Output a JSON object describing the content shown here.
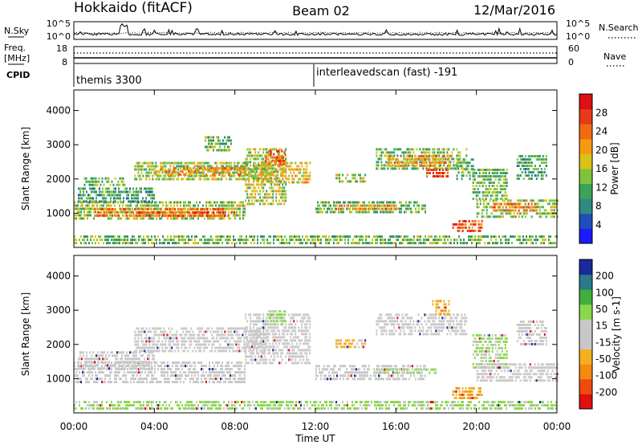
{
  "header": {
    "station": "Hokkaido (fitACF)",
    "beam": "Beam 02",
    "date": "12/Mar/2016"
  },
  "left_labels": {
    "nsky": "N.Sky",
    "freq": "Freq.",
    "mhz": "[MHz]",
    "cpid": "CPID"
  },
  "right_labels": {
    "nsearch": "N.Search",
    "nave": "Nave"
  },
  "noise_axis": {
    "top": "10^5",
    "bottom": "10^0",
    "right_top": "10^5",
    "right_bottom": "10^0"
  },
  "freq_axis": {
    "left_top": "18",
    "left_bottom": "8",
    "right_top": "60",
    "right_bottom": "0"
  },
  "cpid_segments": [
    {
      "label": "themis 3300",
      "start_hour": 0.0
    },
    {
      "label": "interleavedscan (fast) -191",
      "start_hour": 12.0
    }
  ],
  "x_axis": {
    "label": "Time UT",
    "ticks": [
      "00:00",
      "04:00",
      "08:00",
      "12:00",
      "16:00",
      "20:00",
      "00:00"
    ],
    "tick_hours": [
      0,
      4,
      8,
      12,
      16,
      20,
      24
    ]
  },
  "colors": {
    "power": [
      "#1a1aff",
      "#1f4fb8",
      "#2e8b7e",
      "#3aa35a",
      "#7fc23c",
      "#d8c21a",
      "#f59a10",
      "#f26a12",
      "#e83a1a",
      "#dd1111"
    ],
    "velocity": [
      "#e01010",
      "#f04a10",
      "#f58a10",
      "#f5b020",
      "#c8c8c8",
      "#c8c8c8",
      "#8ad84a",
      "#3fb03a",
      "#2a7a8a",
      "#1a2a9a"
    ]
  },
  "chart_data": [
    {
      "type": "heatmap",
      "name": "power",
      "ylabel": "Slant Range [km]",
      "ylim": [
        0,
        4600
      ],
      "yticks": [
        1000,
        2000,
        3000,
        4000
      ],
      "colorbar": {
        "label": "Power [dB]",
        "ticks": [
          "4",
          "8",
          "12",
          "16",
          "20",
          "24",
          "28"
        ],
        "range": [
          0,
          30
        ]
      },
      "bands": [
        {
          "t0": 0.0,
          "t1": 8.5,
          "r0": 850,
          "r1": 1350,
          "v": 14
        },
        {
          "t0": 1.0,
          "t1": 7.5,
          "r0": 950,
          "r1": 1150,
          "v": 22
        },
        {
          "t0": 3.0,
          "t1": 8.0,
          "r0": 900,
          "r1": 1050,
          "v": 24
        },
        {
          "t0": 0.2,
          "t1": 4.0,
          "r0": 1300,
          "r1": 1750,
          "v": 10
        },
        {
          "t0": 0.5,
          "t1": 2.5,
          "r0": 1800,
          "r1": 2050,
          "v": 11
        },
        {
          "t0": 3.0,
          "t1": 9.5,
          "r0": 2000,
          "r1": 2500,
          "v": 14
        },
        {
          "t0": 4.0,
          "t1": 8.5,
          "r0": 2150,
          "r1": 2350,
          "v": 21
        },
        {
          "t0": 8.5,
          "t1": 10.5,
          "r0": 1300,
          "r1": 2900,
          "v": 15
        },
        {
          "t0": 9.5,
          "t1": 10.5,
          "r0": 2450,
          "r1": 2850,
          "v": 25
        },
        {
          "t0": 9.3,
          "t1": 11.7,
          "r0": 1850,
          "r1": 2500,
          "v": 18
        },
        {
          "t0": 6.5,
          "t1": 7.8,
          "r0": 2850,
          "r1": 3250,
          "v": 12
        },
        {
          "t0": 12.0,
          "t1": 17.5,
          "r0": 1000,
          "r1": 1350,
          "v": 12
        },
        {
          "t0": 13.0,
          "t1": 16.0,
          "r0": 1080,
          "r1": 1250,
          "v": 20
        },
        {
          "t0": 13.0,
          "t1": 14.5,
          "r0": 1900,
          "r1": 2150,
          "v": 14
        },
        {
          "t0": 15.0,
          "t1": 19.5,
          "r0": 2300,
          "r1": 2900,
          "v": 12
        },
        {
          "t0": 15.5,
          "t1": 18.8,
          "r0": 2400,
          "r1": 2700,
          "v": 20
        },
        {
          "t0": 17.5,
          "t1": 18.6,
          "r0": 2050,
          "r1": 2300,
          "v": 26
        },
        {
          "t0": 18.8,
          "t1": 20.3,
          "r0": 500,
          "r1": 800,
          "v": 24
        },
        {
          "t0": 20.0,
          "t1": 24.0,
          "r0": 900,
          "r1": 1400,
          "v": 14
        },
        {
          "t0": 20.8,
          "t1": 23.0,
          "r0": 1050,
          "r1": 1300,
          "v": 22
        },
        {
          "t0": 19.8,
          "t1": 21.5,
          "r0": 1400,
          "r1": 2300,
          "v": 12
        },
        {
          "t0": 22.0,
          "t1": 23.5,
          "r0": 2000,
          "r1": 2700,
          "v": 10
        },
        {
          "t0": 19.0,
          "t1": 19.8,
          "r0": 2000,
          "r1": 2600,
          "v": 11
        },
        {
          "t0": 12.0,
          "t1": 24.0,
          "r0": 150,
          "r1": 350,
          "v": 12
        },
        {
          "t0": 0.0,
          "t1": 12.0,
          "r0": 150,
          "r1": 350,
          "v": 12
        }
      ]
    },
    {
      "type": "heatmap",
      "name": "velocity",
      "ylabel": "Slant Range [km]",
      "ylim": [
        0,
        4600
      ],
      "yticks": [
        1000,
        2000,
        3000,
        4000
      ],
      "colorbar": {
        "label": "Velocity [m s-1]",
        "ticks": [
          "-200",
          "-100",
          "-50",
          "-15",
          "15",
          "50",
          "100",
          "200"
        ],
        "range": [
          -250,
          250
        ]
      },
      "bands": [
        {
          "t0": 0.0,
          "t1": 8.5,
          "r0": 850,
          "r1": 1500,
          "v": 0
        },
        {
          "t0": 0.2,
          "t1": 4.0,
          "r0": 1300,
          "r1": 1800,
          "v": 0
        },
        {
          "t0": 3.0,
          "t1": 9.5,
          "r0": 1800,
          "r1": 2500,
          "v": 0
        },
        {
          "t0": 8.5,
          "t1": 11.7,
          "r0": 1400,
          "r1": 2900,
          "v": 5
        },
        {
          "t0": 9.5,
          "t1": 10.5,
          "r0": 2600,
          "r1": 3000,
          "v": 60
        },
        {
          "t0": 12.0,
          "t1": 17.5,
          "r0": 1000,
          "r1": 1400,
          "v": 10
        },
        {
          "t0": 15.0,
          "t1": 18.0,
          "r0": 1150,
          "r1": 1300,
          "v": 60
        },
        {
          "t0": 13.0,
          "t1": 14.5,
          "r0": 1900,
          "r1": 2150,
          "v": -60
        },
        {
          "t0": 15.0,
          "t1": 19.5,
          "r0": 2300,
          "r1": 2900,
          "v": 0
        },
        {
          "t0": 17.8,
          "t1": 18.6,
          "r0": 2900,
          "r1": 3300,
          "v": -80
        },
        {
          "t0": 18.8,
          "t1": 20.3,
          "r0": 450,
          "r1": 750,
          "v": -90
        },
        {
          "t0": 19.8,
          "t1": 21.5,
          "r0": 1300,
          "r1": 2300,
          "v": 60
        },
        {
          "t0": 20.0,
          "t1": 24.0,
          "r0": 900,
          "r1": 1450,
          "v": 0
        },
        {
          "t0": 22.0,
          "t1": 23.5,
          "r0": 2000,
          "r1": 2700,
          "v": 0
        },
        {
          "t0": 0.0,
          "t1": 24.0,
          "r0": 150,
          "r1": 350,
          "v": 60
        }
      ]
    }
  ]
}
